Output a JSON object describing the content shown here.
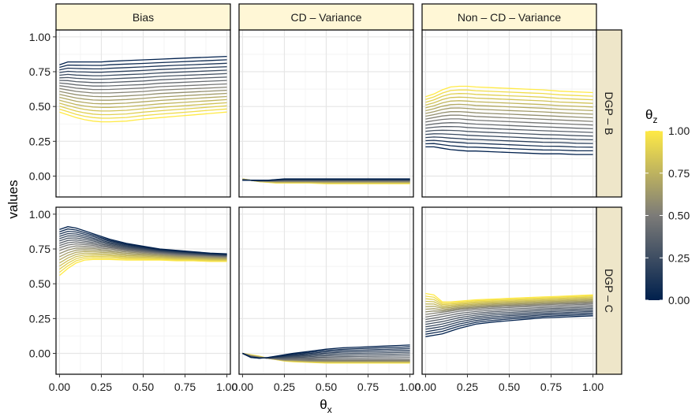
{
  "chart_data": {
    "type": "line",
    "layout": "faceted-grid",
    "xlabel": "θ",
    "xlabel_sub": "x",
    "ylabel": "values",
    "xlim": [
      0,
      1
    ],
    "ylim": [
      -0.15,
      1.05
    ],
    "x_ticks": [
      "0.00",
      "0.25",
      "0.50",
      "0.75",
      "1.00"
    ],
    "y_ticks": [
      "0.00",
      "0.25",
      "0.50",
      "0.75",
      "1.00"
    ],
    "grid": true,
    "columns": [
      "Bias",
      "CD – Variance",
      "Non – CD – Variance"
    ],
    "rows": [
      "DGP – B",
      "DGP – C"
    ],
    "strip_colors": {
      "column": "#FFF7D6",
      "row": "#EEE6C9"
    },
    "legend": {
      "title": "θ",
      "title_sub": "z",
      "type": "colorbar",
      "placement": "right",
      "ticks": [
        "1.00",
        "0.75",
        "0.50",
        "0.25",
        "0.00"
      ],
      "color_low": "#00204D",
      "color_mid": "#7C7B78",
      "color_high": "#FFEA46"
    },
    "series_count": 18,
    "x": [
      0,
      0.05,
      0.1,
      0.15,
      0.2,
      0.25,
      0.3,
      0.4,
      0.5,
      0.6,
      0.7,
      0.8,
      0.9,
      1.0
    ],
    "panels": [
      {
        "row": "DGP – B",
        "column": "Bias",
        "series": [
          {
            "theta_z": 0.0,
            "values": [
              0.8,
              0.82,
              0.82,
              0.82,
              0.82,
              0.82,
              0.825,
              0.83,
              0.835,
              0.84,
              0.845,
              0.85,
              0.855,
              0.86
            ]
          },
          {
            "theta_z": 0.5,
            "values": [
              0.64,
              0.63,
              0.62,
              0.615,
              0.61,
              0.61,
              0.61,
              0.615,
              0.62,
              0.63,
              0.635,
              0.64,
              0.645,
              0.65
            ]
          },
          {
            "theta_z": 1.0,
            "values": [
              0.46,
              0.44,
              0.42,
              0.405,
              0.395,
              0.39,
              0.39,
              0.395,
              0.41,
              0.42,
              0.43,
              0.44,
              0.45,
              0.46
            ]
          }
        ]
      },
      {
        "row": "DGP – B",
        "column": "CD – Variance",
        "series": [
          {
            "theta_z": 0.0,
            "values": [
              -0.03,
              -0.03,
              -0.03,
              -0.03,
              -0.025,
              -0.02,
              -0.02,
              -0.02,
              -0.02,
              -0.02,
              -0.02,
              -0.02,
              -0.02,
              -0.02
            ]
          },
          {
            "theta_z": 0.5,
            "values": [
              -0.025,
              -0.03,
              -0.035,
              -0.035,
              -0.035,
              -0.035,
              -0.035,
              -0.035,
              -0.035,
              -0.035,
              -0.035,
              -0.035,
              -0.035,
              -0.035
            ]
          },
          {
            "theta_z": 1.0,
            "values": [
              -0.02,
              -0.03,
              -0.04,
              -0.045,
              -0.05,
              -0.05,
              -0.05,
              -0.05,
              -0.055,
              -0.055,
              -0.055,
              -0.055,
              -0.055,
              -0.055
            ]
          }
        ]
      },
      {
        "row": "DGP – B",
        "column": "Non – CD – Variance",
        "series": [
          {
            "theta_z": 0.0,
            "values": [
              0.21,
              0.21,
              0.2,
              0.19,
              0.185,
              0.18,
              0.18,
              0.175,
              0.17,
              0.165,
              0.16,
              0.16,
              0.155,
              0.155
            ]
          },
          {
            "theta_z": 0.5,
            "values": [
              0.4,
              0.41,
              0.42,
              0.425,
              0.425,
              0.42,
              0.415,
              0.41,
              0.405,
              0.4,
              0.395,
              0.39,
              0.385,
              0.38
            ]
          },
          {
            "theta_z": 1.0,
            "values": [
              0.57,
              0.59,
              0.62,
              0.64,
              0.645,
              0.645,
              0.64,
              0.635,
              0.63,
              0.625,
              0.62,
              0.61,
              0.605,
              0.6
            ]
          }
        ]
      },
      {
        "row": "DGP – C",
        "column": "Bias",
        "series": [
          {
            "theta_z": 0.0,
            "values": [
              0.89,
              0.91,
              0.9,
              0.88,
              0.86,
              0.84,
              0.82,
              0.79,
              0.77,
              0.75,
              0.74,
              0.73,
              0.72,
              0.715
            ]
          },
          {
            "theta_z": 0.5,
            "values": [
              0.75,
              0.77,
              0.78,
              0.775,
              0.77,
              0.76,
              0.755,
              0.74,
              0.73,
              0.72,
              0.71,
              0.705,
              0.7,
              0.695
            ]
          },
          {
            "theta_z": 1.0,
            "values": [
              0.56,
              0.61,
              0.65,
              0.67,
              0.675,
              0.675,
              0.675,
              0.67,
              0.67,
              0.67,
              0.665,
              0.665,
              0.66,
              0.66
            ]
          }
        ]
      },
      {
        "row": "DGP – C",
        "column": "CD – Variance",
        "series": [
          {
            "theta_z": 0.0,
            "values": [
              0.0,
              -0.03,
              -0.035,
              -0.03,
              -0.02,
              -0.01,
              0.0,
              0.015,
              0.03,
              0.04,
              0.045,
              0.05,
              0.055,
              0.06
            ]
          },
          {
            "theta_z": 0.5,
            "values": [
              0.0,
              -0.02,
              -0.03,
              -0.035,
              -0.04,
              -0.045,
              -0.045,
              -0.05,
              -0.05,
              -0.05,
              -0.05,
              -0.05,
              -0.05,
              -0.05
            ]
          },
          {
            "theta_z": 1.0,
            "values": [
              0.0,
              -0.01,
              -0.02,
              -0.035,
              -0.045,
              -0.055,
              -0.06,
              -0.065,
              -0.07,
              -0.07,
              -0.07,
              -0.07,
              -0.07,
              -0.07
            ]
          }
        ]
      },
      {
        "row": "DGP – C",
        "column": "Non – CD – Variance",
        "series": [
          {
            "theta_z": 0.0,
            "values": [
              0.12,
              0.13,
              0.14,
              0.16,
              0.18,
              0.195,
              0.21,
              0.225,
              0.235,
              0.245,
              0.255,
              0.26,
              0.265,
              0.27
            ]
          },
          {
            "theta_z": 0.5,
            "values": [
              0.27,
              0.28,
              0.29,
              0.3,
              0.31,
              0.315,
              0.32,
              0.33,
              0.335,
              0.34,
              0.345,
              0.35,
              0.355,
              0.36
            ]
          },
          {
            "theta_z": 1.0,
            "values": [
              0.43,
              0.42,
              0.37,
              0.37,
              0.375,
              0.38,
              0.385,
              0.39,
              0.395,
              0.4,
              0.405,
              0.41,
              0.415,
              0.42
            ]
          }
        ]
      }
    ]
  }
}
